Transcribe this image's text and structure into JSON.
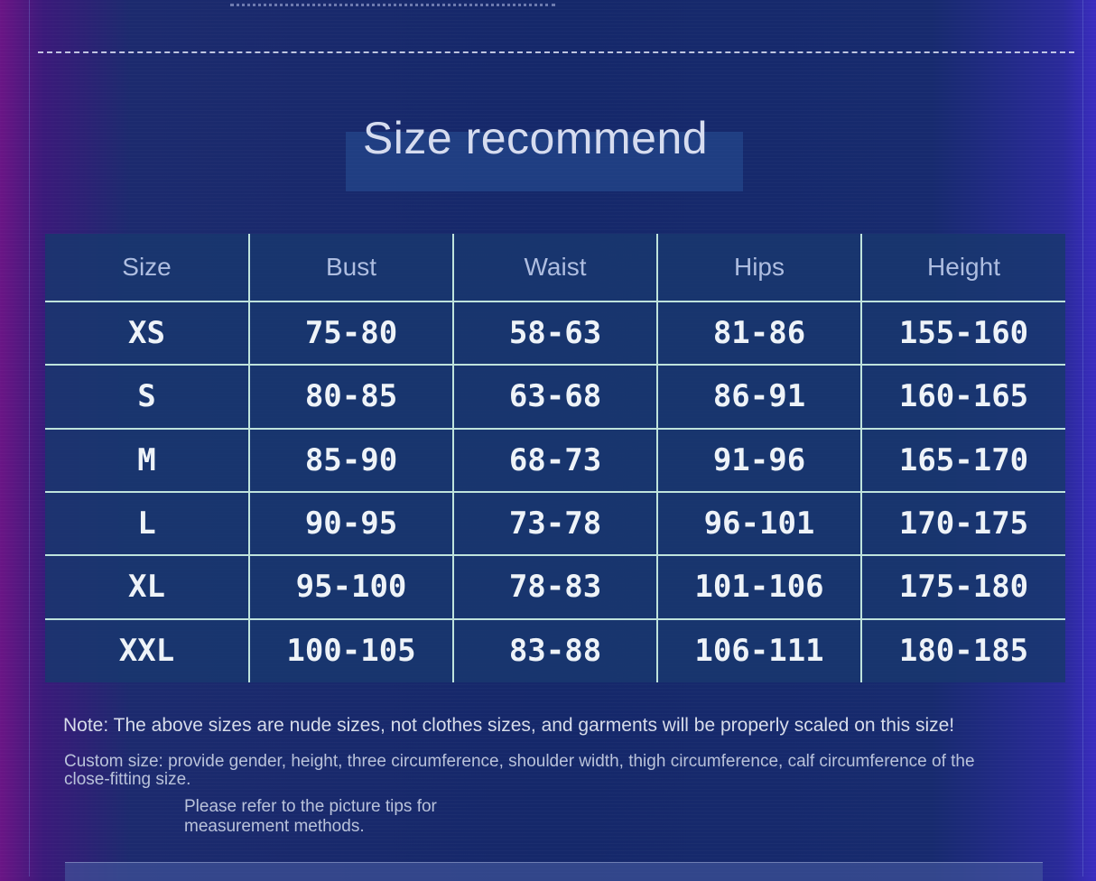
{
  "title": "Size recommend",
  "table": {
    "headers": [
      "Size",
      "Bust",
      "Waist",
      "Hips",
      "Height"
    ],
    "rows": [
      [
        "XS",
        "75-80",
        "58-63",
        "81-86",
        "155-160"
      ],
      [
        "S",
        "80-85",
        "63-68",
        "86-91",
        "160-165"
      ],
      [
        "M",
        "85-90",
        "68-73",
        "91-96",
        "165-170"
      ],
      [
        "L",
        "90-95",
        "73-78",
        "96-101",
        "170-175"
      ],
      [
        "XL",
        "95-100",
        "78-83",
        "101-106",
        "175-180"
      ],
      [
        "XXL",
        "100-105",
        "83-88",
        "106-111",
        "180-185"
      ]
    ]
  },
  "notes": {
    "note": "Note: The above sizes are nude sizes, not clothes sizes, and garments will be properly scaled on this size!",
    "custom": "Custom size: provide gender, height, three circumference, shoulder width, thigh circumference, calf circumference of the close-fitting size.",
    "refer": "Please refer to the picture tips for measurement methods."
  },
  "colors": {
    "background": "#15286a",
    "table_fill": "#19376e",
    "grid_line": "#bfe3dc",
    "text": "#eef3f8"
  }
}
